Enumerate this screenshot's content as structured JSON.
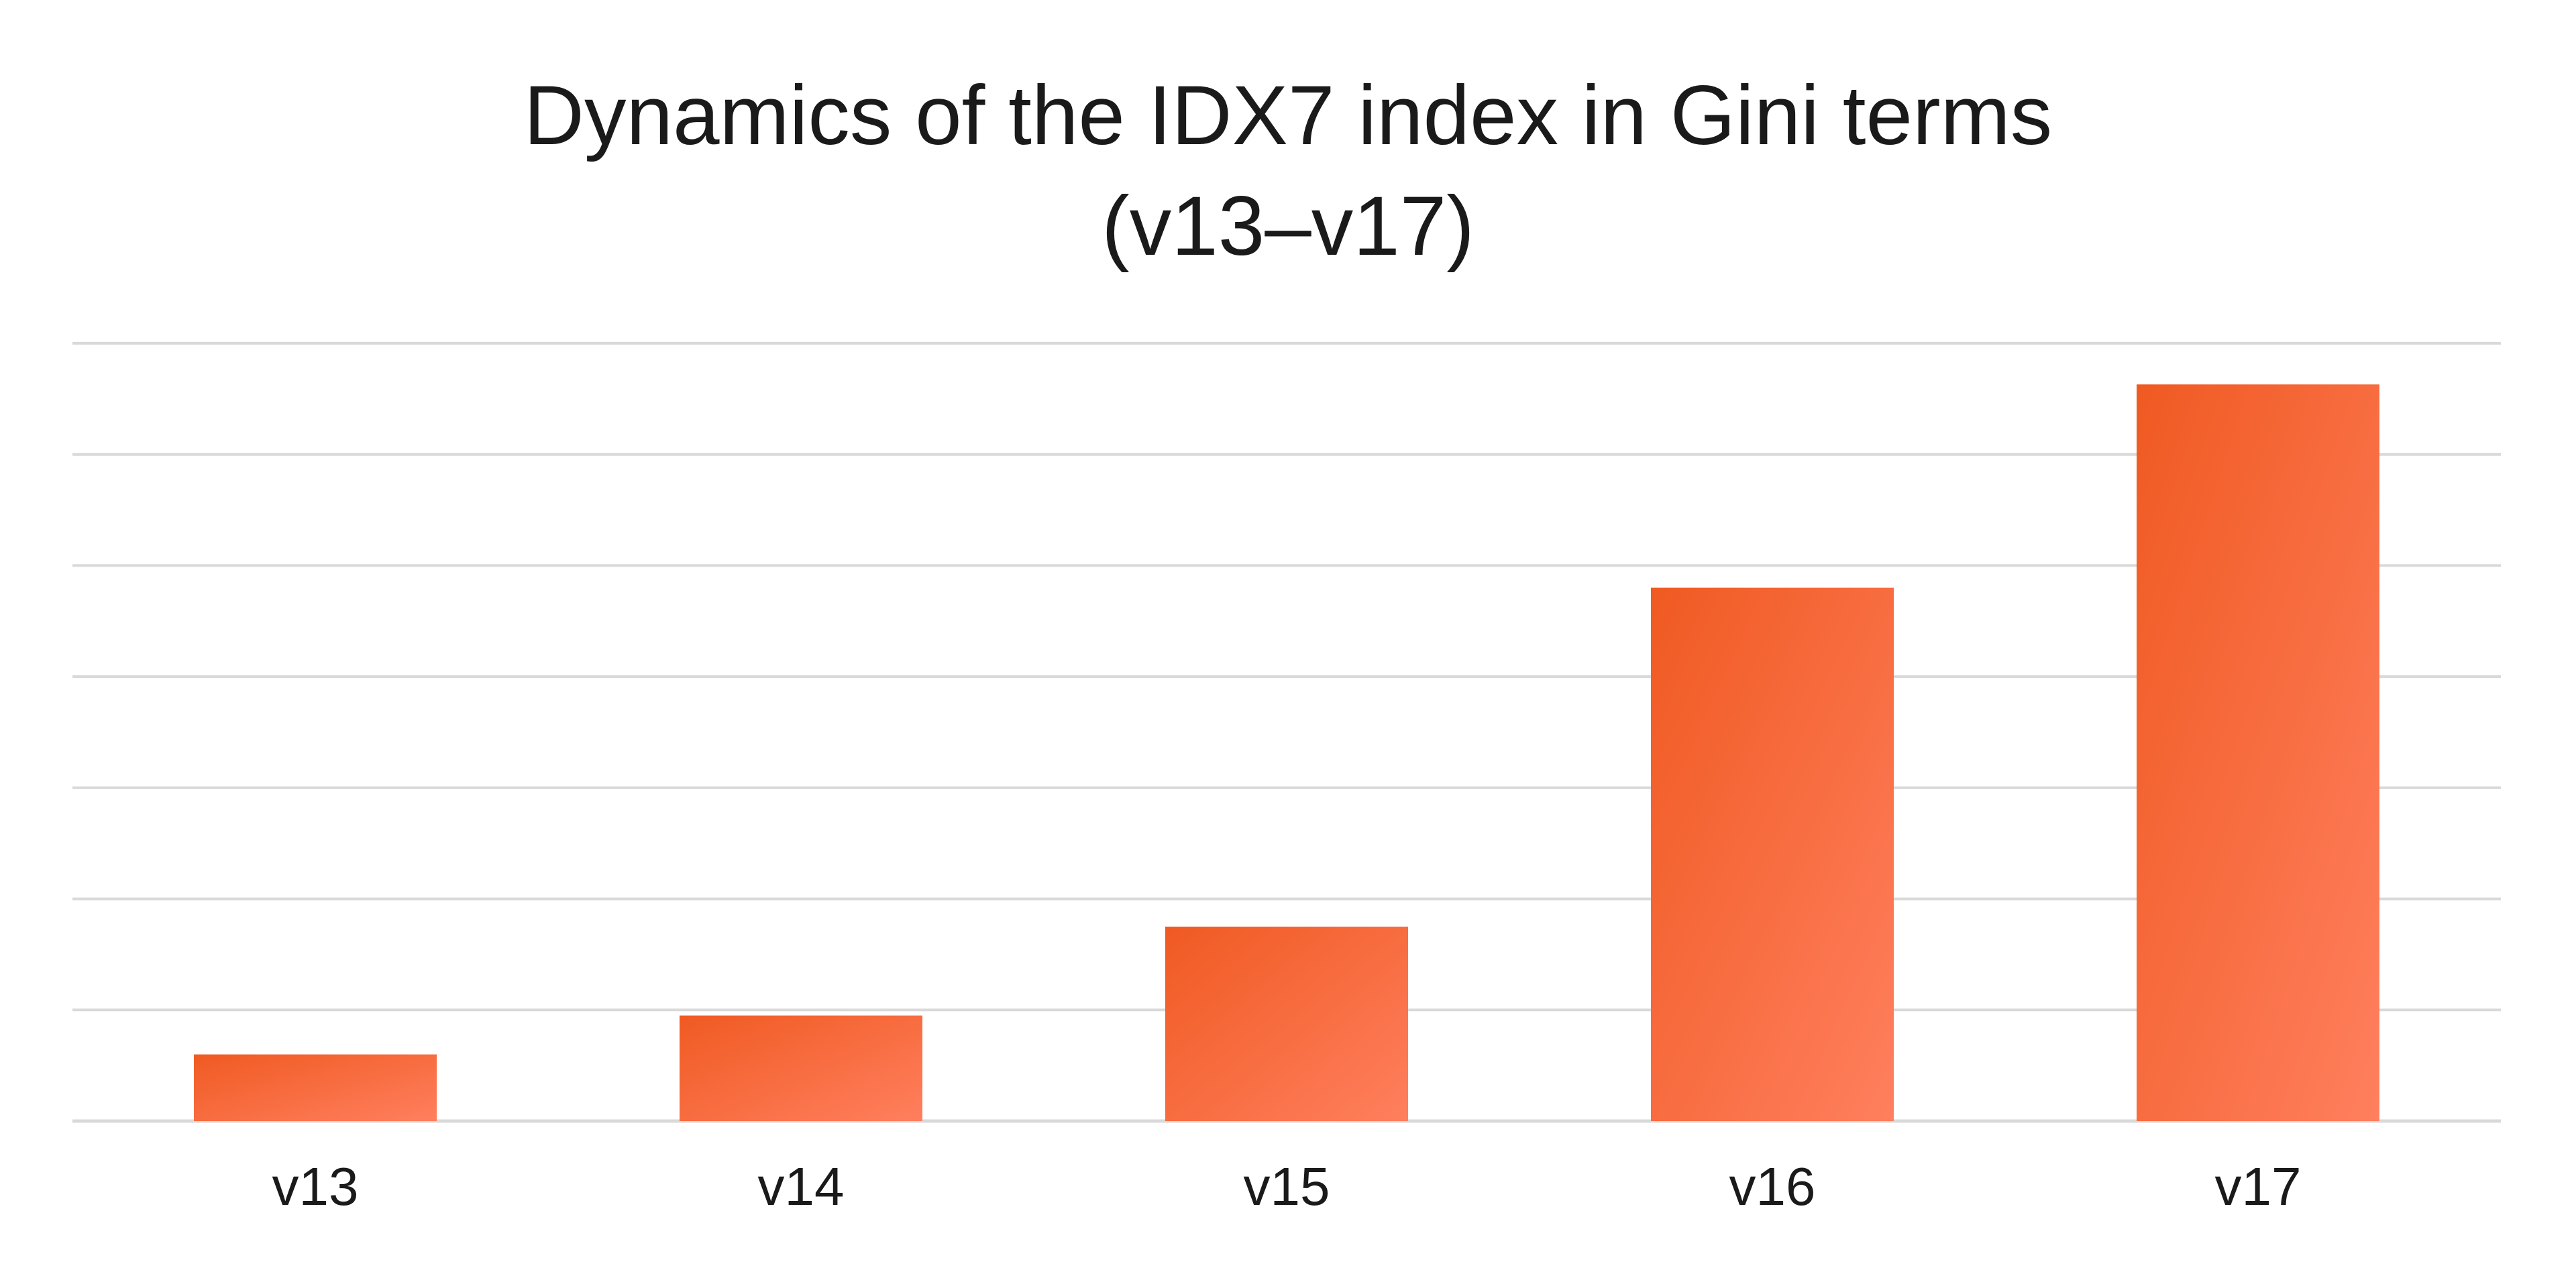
{
  "chart_data": {
    "type": "bar",
    "title": "Dynamics of the IDX7 index in Gini terms",
    "subtitle": "(v13–v17)",
    "categories": [
      "v13",
      "v14",
      "v15",
      "v16",
      "v17"
    ],
    "values": [
      0.6,
      0.95,
      1.75,
      4.8,
      6.63
    ],
    "ylim": [
      0,
      7
    ],
    "xlabel": "",
    "ylabel": "",
    "grid": true,
    "legend": "none",
    "colors": {
      "bar_top": "#f05a22",
      "bar_bottom": "#ff7f5e",
      "grid": "#d9d9d9",
      "text": "#1a1a1a"
    }
  }
}
